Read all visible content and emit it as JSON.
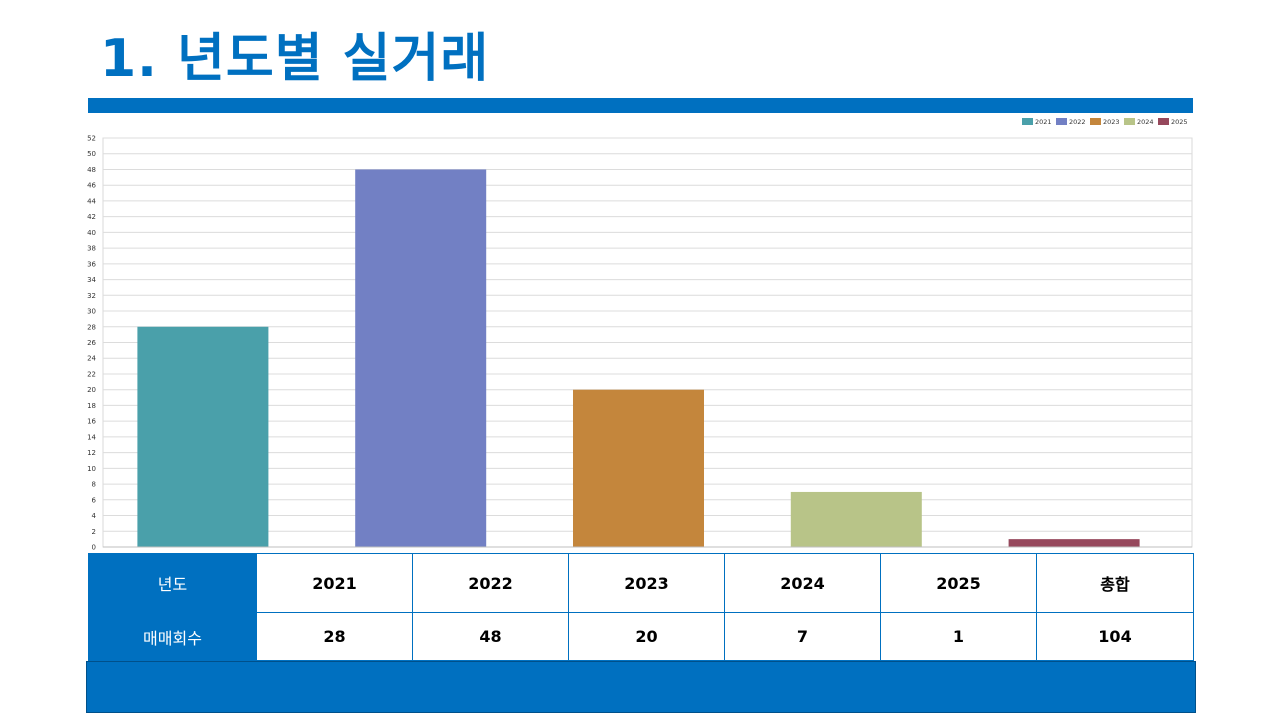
{
  "page": {
    "title": "1. 년도별 실거래",
    "accent_color": "#0070c0"
  },
  "chart_data": {
    "type": "bar",
    "categories": [
      "2021",
      "2022",
      "2023",
      "2024",
      "2025"
    ],
    "values": [
      28,
      48,
      20,
      7,
      1
    ],
    "colors": [
      "#4aa0aa",
      "#7280c4",
      "#c4863c",
      "#b8c488",
      "#96485c"
    ],
    "legend": [
      "2021",
      "2022",
      "2023",
      "2024",
      "2025"
    ],
    "legend_position": "top-right",
    "ylim": [
      0,
      52
    ],
    "y_ticks": [
      0,
      2,
      4,
      6,
      8,
      10,
      12,
      14,
      16,
      18,
      20,
      22,
      24,
      26,
      28,
      30,
      32,
      34,
      36,
      38,
      40,
      42,
      44,
      46,
      48,
      50,
      52
    ],
    "grid": true,
    "title": "",
    "xlabel": "",
    "ylabel": ""
  },
  "table": {
    "row1": [
      "년도",
      "2021",
      "2022",
      "2023",
      "2024",
      "2025",
      "총합"
    ],
    "row2": [
      "매매회수",
      "28",
      "48",
      "20",
      "7",
      "1",
      "104"
    ]
  }
}
